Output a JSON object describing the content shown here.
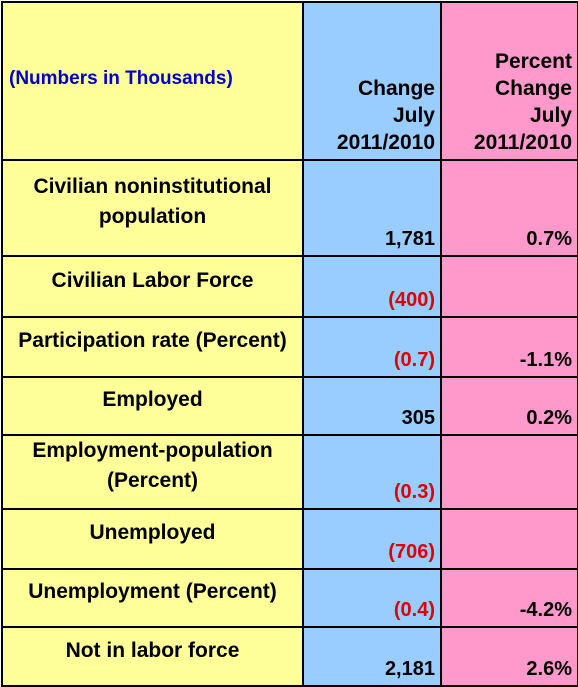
{
  "header": {
    "label_col": "(Numbers in Thousands)",
    "change_col": [
      "Change",
      "July",
      "2011/2010"
    ],
    "pct_col": [
      "Percent",
      "Change",
      "July",
      "2011/2010"
    ]
  },
  "rows": [
    {
      "label": "Civilian noninstitutional population",
      "change": "1,781",
      "change_negative": false,
      "pct": "0.7%"
    },
    {
      "label": "Civilian Labor Force",
      "change": "(400)",
      "change_negative": true,
      "pct": ""
    },
    {
      "label": "Participation rate (Percent)",
      "change": "(0.7)",
      "change_negative": true,
      "pct": "-1.1%"
    },
    {
      "label": "Employed",
      "change": "305",
      "change_negative": false,
      "pct": "0.2%"
    },
    {
      "label": "Employment-population (Percent)",
      "change": "(0.3)",
      "change_negative": true,
      "pct": ""
    },
    {
      "label": "Unemployed",
      "change": "(706)",
      "change_negative": true,
      "pct": ""
    },
    {
      "label": "Unemployment (Percent)",
      "change": "(0.4)",
      "change_negative": true,
      "pct": "-4.2%"
    },
    {
      "label": "Not in labor force",
      "change": "2,181",
      "change_negative": false,
      "pct": "2.6%"
    }
  ],
  "colors": {
    "label_bg": "#ffff99",
    "change_bg": "#99ccff",
    "pct_bg": "#ff99cc",
    "header_text": "#0000cc",
    "negative_text": "#e00000"
  }
}
